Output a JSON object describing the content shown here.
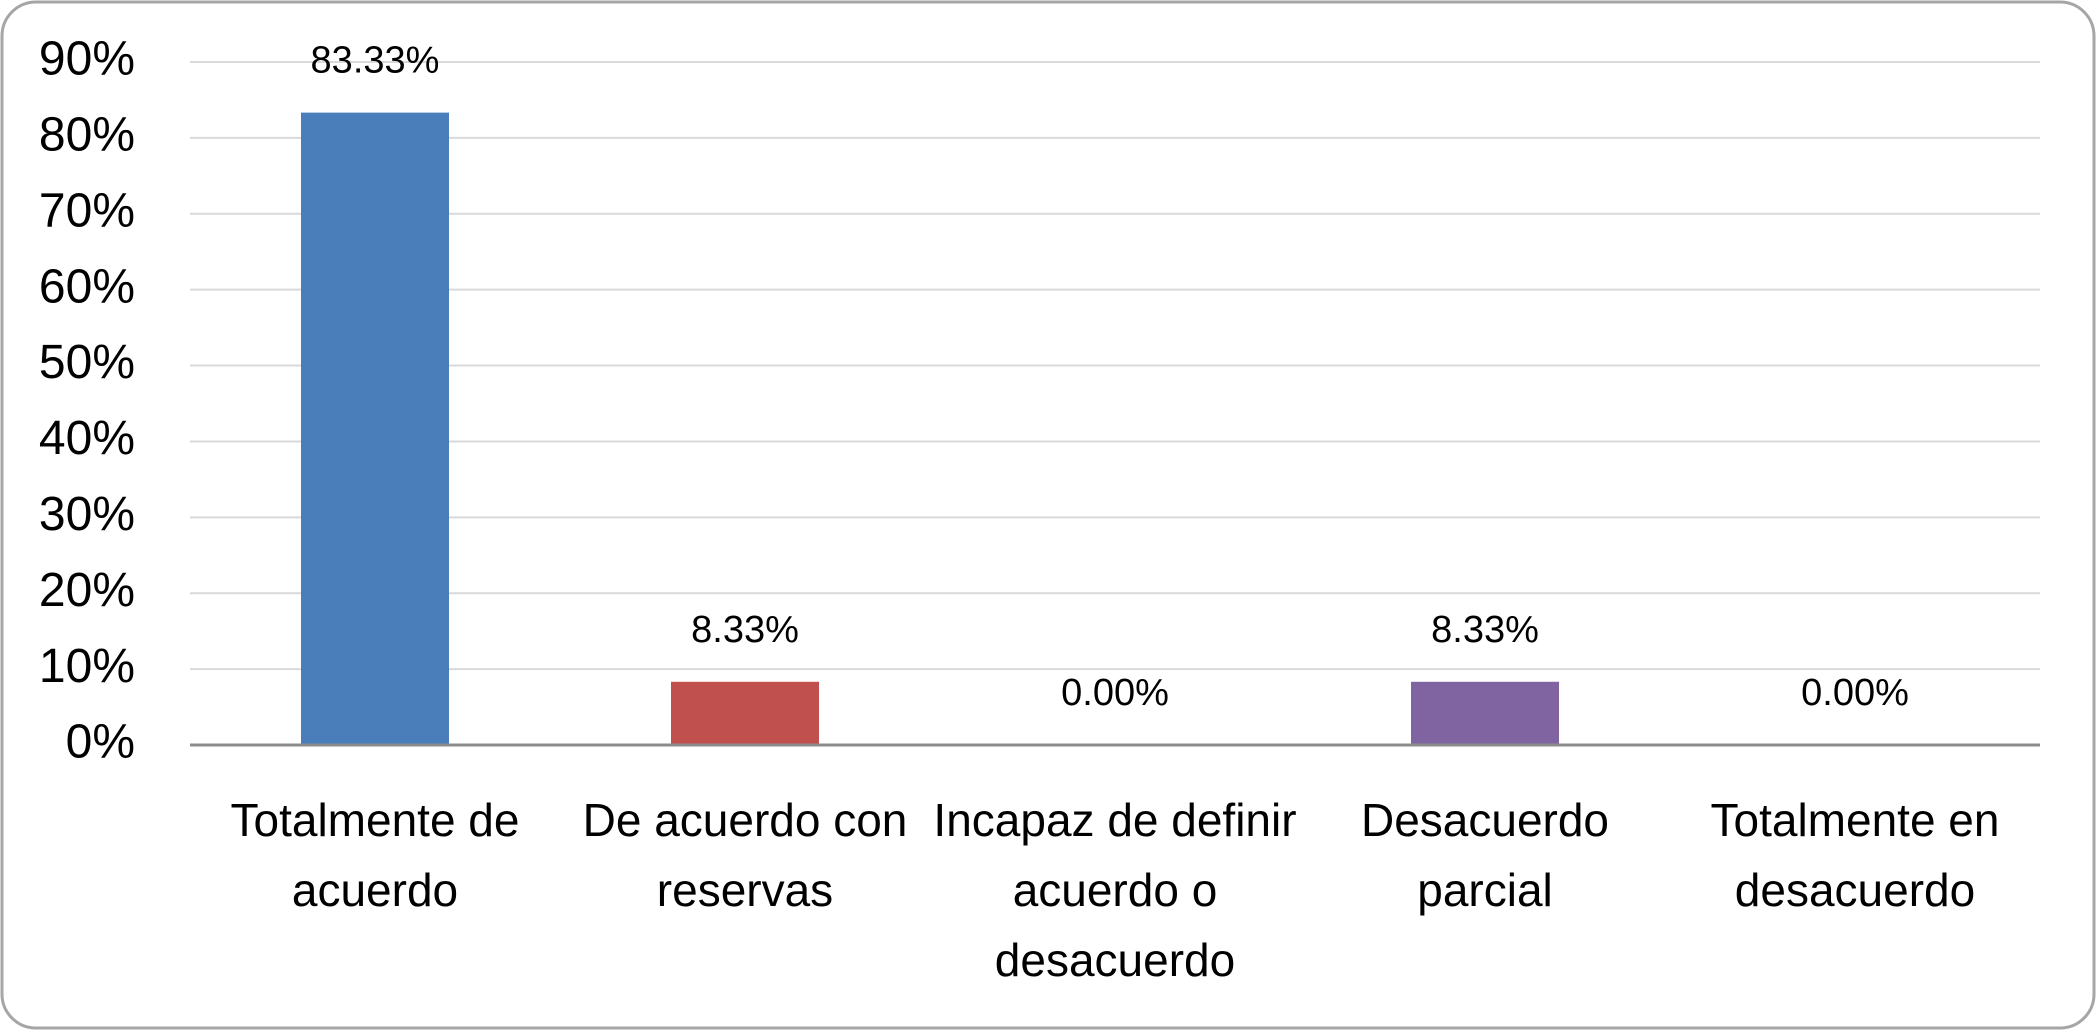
{
  "chart_data": {
    "type": "bar",
    "categories": [
      "Totalmente de acuerdo",
      "De acuerdo con reservas",
      "Incapaz de definir acuerdo o desacuerdo",
      "Desacuerdo parcial",
      "Totalmente en desacuerdo"
    ],
    "values": [
      83.33,
      8.33,
      0,
      8.33,
      0
    ],
    "value_labels": [
      "83.33%",
      "8.33%",
      "0.00%",
      "8.33%",
      "0.00%"
    ],
    "colors": [
      "#4a7ebb",
      "#c0504d",
      "#9bbb59",
      "#8064a2",
      "#4bacc6"
    ],
    "ylim": [
      0,
      90
    ],
    "yticks": [
      {
        "value": 0,
        "label": "0%"
      },
      {
        "value": 10,
        "label": "10%"
      },
      {
        "value": 20,
        "label": "20%"
      },
      {
        "value": 30,
        "label": "30%"
      },
      {
        "value": 40,
        "label": "40%"
      },
      {
        "value": 50,
        "label": "50%"
      },
      {
        "value": 60,
        "label": "60%"
      },
      {
        "value": 70,
        "label": "70%"
      },
      {
        "value": 80,
        "label": "80%"
      },
      {
        "value": 90,
        "label": "90%"
      }
    ],
    "grid": true
  }
}
